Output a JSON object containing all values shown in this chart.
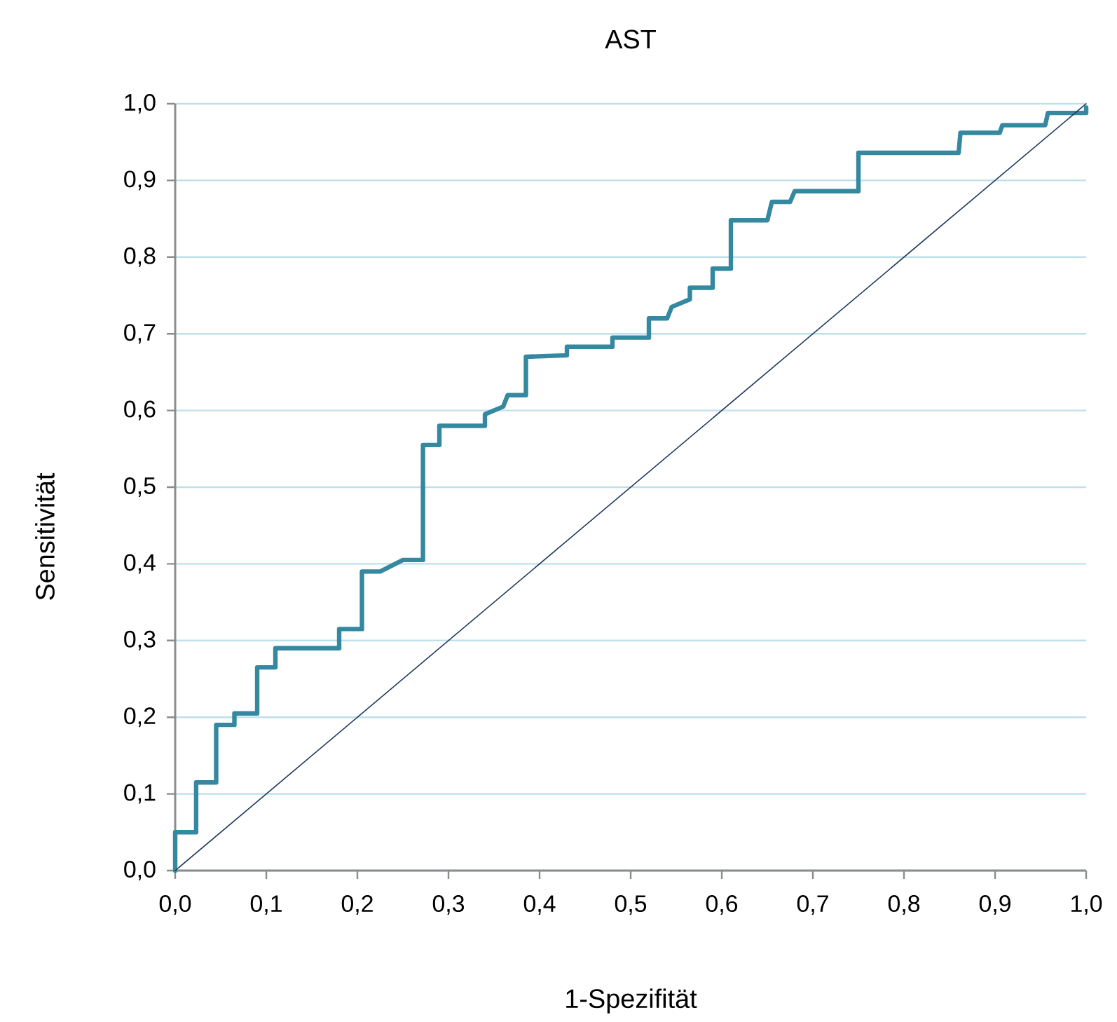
{
  "chart_data": {
    "type": "line",
    "title": "AST",
    "xlabel": "1-Spezifität",
    "ylabel": "Sensitivität",
    "xlim": [
      0,
      1
    ],
    "ylim": [
      0,
      1
    ],
    "xticks": [
      {
        "value": 0,
        "label": "0,0"
      },
      {
        "value": 0.1,
        "label": "0,1"
      },
      {
        "value": 0.2,
        "label": "0,2"
      },
      {
        "value": 0.3,
        "label": "0,3"
      },
      {
        "value": 0.4,
        "label": "0,4"
      },
      {
        "value": 0.5,
        "label": "0,5"
      },
      {
        "value": 0.6,
        "label": "0,6"
      },
      {
        "value": 0.7,
        "label": "0,7"
      },
      {
        "value": 0.8,
        "label": "0,8"
      },
      {
        "value": 0.9,
        "label": "0,9"
      },
      {
        "value": 1,
        "label": "1,0"
      }
    ],
    "yticks": [
      {
        "value": 0,
        "label": "0,0"
      },
      {
        "value": 0.1,
        "label": "0,1"
      },
      {
        "value": 0.2,
        "label": "0,2"
      },
      {
        "value": 0.3,
        "label": "0,3"
      },
      {
        "value": 0.4,
        "label": "0,4"
      },
      {
        "value": 0.5,
        "label": "0,5"
      },
      {
        "value": 0.6,
        "label": "0,6"
      },
      {
        "value": 0.7,
        "label": "0,7"
      },
      {
        "value": 0.8,
        "label": "0,8"
      },
      {
        "value": 0.9,
        "label": "0,9"
      },
      {
        "value": 1,
        "label": "1,0"
      }
    ],
    "grid": "y",
    "line_style": "solid",
    "series": [
      {
        "color": "#34889f",
        "x": [
          0,
          0,
          0.023,
          0.023,
          0.045,
          0.045,
          0.065,
          0.065,
          0.09,
          0.09,
          0.11,
          0.11,
          0.18,
          0.18,
          0.205,
          0.205,
          0.225,
          0.25,
          0.272,
          0.272,
          0.29,
          0.29,
          0.34,
          0.34,
          0.36,
          0.365,
          0.385,
          0.385,
          0.43,
          0.43,
          0.48,
          0.48,
          0.52,
          0.52,
          0.54,
          0.545,
          0.565,
          0.565,
          0.59,
          0.59,
          0.61,
          0.61,
          0.65,
          0.655,
          0.675,
          0.68,
          0.75,
          0.75,
          0.86,
          0.862,
          0.905,
          0.908,
          0.955,
          0.958,
          1,
          1
        ],
        "values": [
          0,
          0.05,
          0.05,
          0.115,
          0.115,
          0.19,
          0.19,
          0.205,
          0.205,
          0.265,
          0.265,
          0.29,
          0.29,
          0.315,
          0.315,
          0.39,
          0.39,
          0.405,
          0.405,
          0.555,
          0.555,
          0.58,
          0.58,
          0.595,
          0.605,
          0.62,
          0.62,
          0.67,
          0.672,
          0.683,
          0.683,
          0.695,
          0.695,
          0.72,
          0.72,
          0.735,
          0.745,
          0.76,
          0.76,
          0.785,
          0.785,
          0.848,
          0.848,
          0.872,
          0.872,
          0.886,
          0.886,
          0.936,
          0.936,
          0.962,
          0.962,
          0.972,
          0.972,
          0.988,
          0.988,
          0.995
        ]
      },
      {
        "color": "#1f3a5f",
        "x": [
          0,
          1
        ],
        "values": [
          0,
          1
        ]
      }
    ]
  }
}
